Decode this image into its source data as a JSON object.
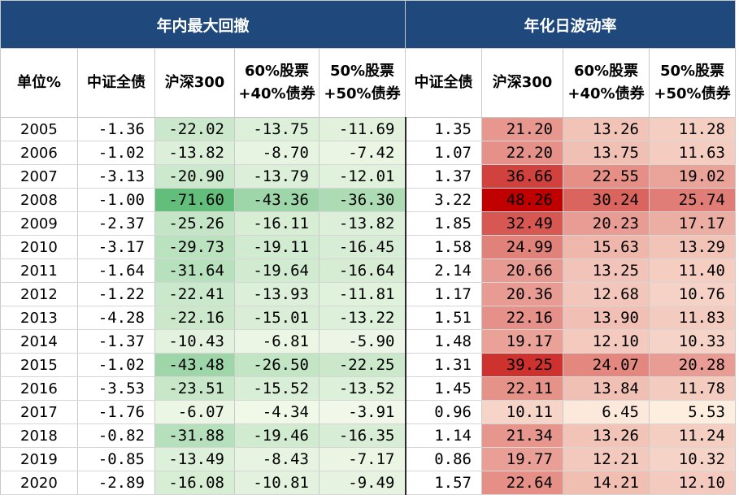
{
  "header": {
    "group_drawdown": "年内最大回撤",
    "group_volatility": "年化日波动率"
  },
  "columns": {
    "unit": "单位%",
    "dd_bond": "中证全债",
    "dd_hs300": "沪深300",
    "dd_6040_line1": "60%股票",
    "dd_6040_line2": "+40%债券",
    "dd_5050_line1": "50%股票",
    "dd_5050_line2": "+50%债券",
    "vol_bond": "中证全债",
    "vol_hs300": "沪深300",
    "vol_6040_line1": "60%股票",
    "vol_6040_line2": "+40%债券",
    "vol_5050_line1": "50%股票",
    "vol_5050_line2": "+50%债券"
  },
  "colors": {
    "header_bg": "#1f497d",
    "green_max": "#63be7b",
    "green_min": "#f1f8e9",
    "red_max": "#c00000",
    "red_min": "#fdeee0"
  },
  "rows": [
    {
      "year": "2005",
      "dd_bond": "-1.36",
      "dd_hs300": "-22.02",
      "dd_6040": "-13.75",
      "dd_5050": "-11.69",
      "vol_bond": "1.35",
      "vol_hs300": "21.20",
      "vol_6040": "13.26",
      "vol_5050": "11.28"
    },
    {
      "year": "2006",
      "dd_bond": "-1.02",
      "dd_hs300": "-13.82",
      "dd_6040": "-8.70",
      "dd_5050": "-7.42",
      "vol_bond": "1.07",
      "vol_hs300": "22.20",
      "vol_6040": "13.75",
      "vol_5050": "11.63"
    },
    {
      "year": "2007",
      "dd_bond": "-3.13",
      "dd_hs300": "-20.90",
      "dd_6040": "-13.79",
      "dd_5050": "-12.01",
      "vol_bond": "1.37",
      "vol_hs300": "36.66",
      "vol_6040": "22.55",
      "vol_5050": "19.02"
    },
    {
      "year": "2008",
      "dd_bond": "-1.00",
      "dd_hs300": "-71.60",
      "dd_6040": "-43.36",
      "dd_5050": "-36.30",
      "vol_bond": "3.22",
      "vol_hs300": "48.26",
      "vol_6040": "30.24",
      "vol_5050": "25.74"
    },
    {
      "year": "2009",
      "dd_bond": "-2.37",
      "dd_hs300": "-25.26",
      "dd_6040": "-16.11",
      "dd_5050": "-13.82",
      "vol_bond": "1.85",
      "vol_hs300": "32.49",
      "vol_6040": "20.23",
      "vol_5050": "17.17"
    },
    {
      "year": "2010",
      "dd_bond": "-3.17",
      "dd_hs300": "-29.73",
      "dd_6040": "-19.11",
      "dd_5050": "-16.45",
      "vol_bond": "1.58",
      "vol_hs300": "24.99",
      "vol_6040": "15.63",
      "vol_5050": "13.29"
    },
    {
      "year": "2011",
      "dd_bond": "-1.64",
      "dd_hs300": "-31.64",
      "dd_6040": "-19.64",
      "dd_5050": "-16.64",
      "vol_bond": "2.14",
      "vol_hs300": "20.66",
      "vol_6040": "13.25",
      "vol_5050": "11.40"
    },
    {
      "year": "2012",
      "dd_bond": "-1.22",
      "dd_hs300": "-22.41",
      "dd_6040": "-13.93",
      "dd_5050": "-11.81",
      "vol_bond": "1.17",
      "vol_hs300": "20.36",
      "vol_6040": "12.68",
      "vol_5050": "10.76"
    },
    {
      "year": "2013",
      "dd_bond": "-4.28",
      "dd_hs300": "-22.16",
      "dd_6040": "-15.01",
      "dd_5050": "-13.22",
      "vol_bond": "1.51",
      "vol_hs300": "22.16",
      "vol_6040": "13.90",
      "vol_5050": "11.83"
    },
    {
      "year": "2014",
      "dd_bond": "-1.37",
      "dd_hs300": "-10.43",
      "dd_6040": "-6.81",
      "dd_5050": "-5.90",
      "vol_bond": "1.48",
      "vol_hs300": "19.17",
      "vol_6040": "12.10",
      "vol_5050": "10.33"
    },
    {
      "year": "2015",
      "dd_bond": "-1.02",
      "dd_hs300": "-43.48",
      "dd_6040": "-26.50",
      "dd_5050": "-22.25",
      "vol_bond": "1.31",
      "vol_hs300": "39.25",
      "vol_6040": "24.07",
      "vol_5050": "20.28"
    },
    {
      "year": "2016",
      "dd_bond": "-3.53",
      "dd_hs300": "-23.51",
      "dd_6040": "-15.52",
      "dd_5050": "-13.52",
      "vol_bond": "1.45",
      "vol_hs300": "22.11",
      "vol_6040": "13.84",
      "vol_5050": "11.78"
    },
    {
      "year": "2017",
      "dd_bond": "-1.76",
      "dd_hs300": "-6.07",
      "dd_6040": "-4.34",
      "dd_5050": "-3.91",
      "vol_bond": "0.96",
      "vol_hs300": "10.11",
      "vol_6040": "6.45",
      "vol_5050": "5.53"
    },
    {
      "year": "2018",
      "dd_bond": "-0.82",
      "dd_hs300": "-31.88",
      "dd_6040": "-19.46",
      "dd_5050": "-16.35",
      "vol_bond": "1.14",
      "vol_hs300": "21.34",
      "vol_6040": "13.26",
      "vol_5050": "11.24"
    },
    {
      "year": "2019",
      "dd_bond": "-0.85",
      "dd_hs300": "-13.49",
      "dd_6040": "-8.43",
      "dd_5050": "-7.17",
      "vol_bond": "0.86",
      "vol_hs300": "19.77",
      "vol_6040": "12.21",
      "vol_5050": "10.32"
    },
    {
      "year": "2020",
      "dd_bond": "-2.89",
      "dd_hs300": "-16.08",
      "dd_6040": "-10.81",
      "dd_5050": "-9.49",
      "vol_bond": "1.57",
      "vol_hs300": "22.64",
      "vol_6040": "14.21",
      "vol_5050": "12.10"
    }
  ]
}
